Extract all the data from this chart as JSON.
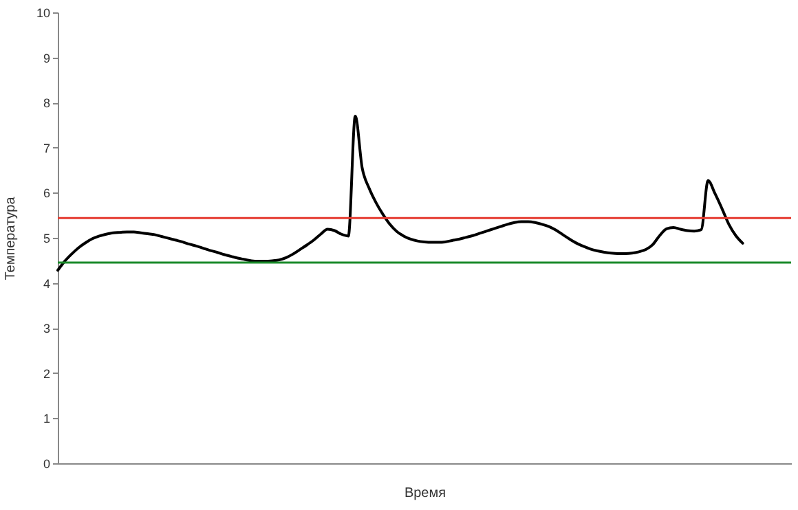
{
  "chart_data": {
    "type": "line",
    "xlabel": "Время",
    "ylabel": "Температура",
    "categories": [
      null,
      null,
      null,
      null,
      null,
      null,
      null,
      null,
      null,
      null,
      null,
      null,
      null,
      null,
      null,
      null,
      null,
      null,
      null,
      null,
      null,
      null,
      null,
      null,
      null,
      null,
      null,
      null,
      null,
      null,
      null,
      null,
      null,
      null,
      null,
      null,
      null,
      null,
      null,
      null,
      null,
      null,
      null,
      null,
      null,
      null,
      null,
      null,
      null,
      null,
      null,
      null,
      null,
      null,
      null,
      null,
      null,
      null,
      null,
      null,
      null,
      null,
      null,
      null,
      null,
      null,
      null,
      null,
      null,
      null,
      null,
      null,
      null,
      null,
      null,
      null,
      null,
      null,
      null,
      null,
      null,
      null,
      null,
      null,
      null,
      null,
      null,
      null,
      null,
      null,
      null,
      null,
      null,
      null,
      null,
      null,
      null,
      null,
      null,
      null,
      null,
      null,
      null,
      null,
      null,
      null,
      null
    ],
    "series": [
      {
        "color": "#000000",
        "values": [
          4.28,
          4.48,
          4.64,
          4.78,
          4.89,
          4.98,
          5.04,
          5.08,
          5.11,
          5.12,
          5.13,
          5.13,
          5.11,
          5.09,
          5.07,
          5.03,
          4.99,
          4.95,
          4.91,
          4.86,
          4.82,
          4.77,
          4.72,
          4.68,
          4.63,
          4.59,
          4.55,
          4.52,
          4.49,
          4.48,
          4.48,
          4.49,
          4.51,
          4.56,
          4.64,
          4.74,
          4.84,
          4.95,
          5.08,
          5.19,
          5.16,
          5.08,
          5.04,
          7.7,
          6.55,
          6.1,
          5.78,
          5.52,
          5.3,
          5.14,
          5.04,
          4.97,
          4.93,
          4.91,
          4.9,
          4.9,
          4.91,
          4.94,
          4.97,
          5.01,
          5.05,
          5.1,
          5.15,
          5.2,
          5.25,
          5.3,
          5.34,
          5.36,
          5.36,
          5.34,
          5.3,
          5.25,
          5.17,
          5.07,
          4.97,
          4.88,
          4.81,
          4.75,
          4.71,
          4.68,
          4.66,
          4.65,
          4.65,
          4.66,
          4.69,
          4.74,
          4.85,
          5.05,
          5.2,
          5.23,
          5.19,
          5.16,
          5.15,
          5.18,
          6.27,
          5.98,
          5.65,
          5.3,
          5.05,
          4.88,
          null,
          null,
          null,
          null,
          null,
          null,
          null
        ]
      }
    ],
    "ref_lines": [
      {
        "axis": "y",
        "value": 5.44,
        "color": "#e53a2f"
      },
      {
        "axis": "y",
        "value": 4.45,
        "color": "#1a8a2a"
      }
    ],
    "ylim": [
      0,
      10
    ],
    "yticks": [
      0,
      1,
      2,
      3,
      4,
      5,
      6,
      7,
      8,
      9,
      10
    ],
    "tick_labels": "y",
    "grid": false
  }
}
